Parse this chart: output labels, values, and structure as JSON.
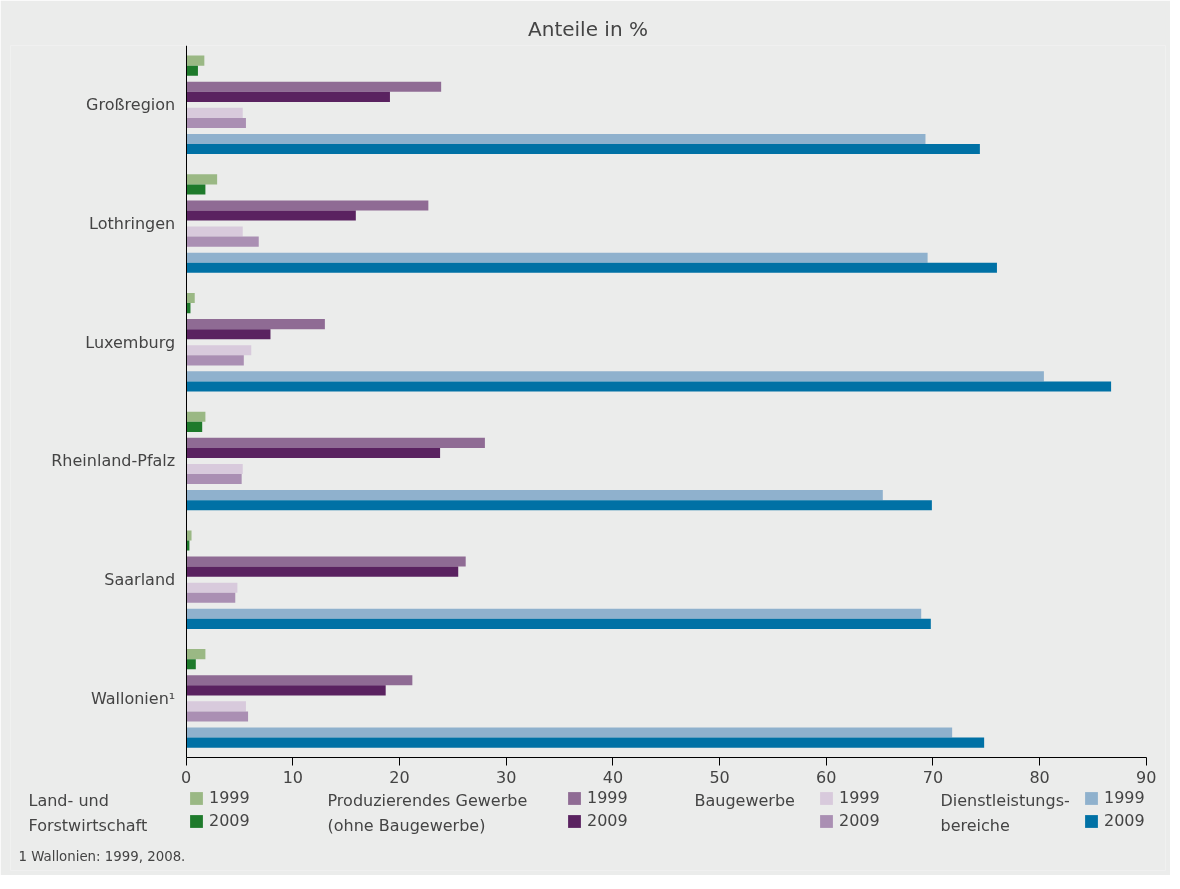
{
  "chart_data": {
    "type": "bar",
    "orientation": "horizontal",
    "title": "Anteile in %",
    "categories": [
      "Großregion",
      "Lothringen",
      "Luxemburg",
      "Rheinland-Pfalz",
      "Saarland",
      "Wallonien¹"
    ],
    "series": [
      {
        "name": "1999",
        "color": "#9ab884",
        "values": [
          1.7,
          2.9,
          0.8,
          1.8,
          0.5,
          1.8
        ]
      },
      {
        "name": "2009",
        "color": "#1e7a2b",
        "values": [
          1.1,
          1.8,
          0.4,
          1.5,
          0.3,
          0.9
        ]
      },
      {
        "name": "1999",
        "color": "#8f6b94",
        "values": [
          23.9,
          22.7,
          13.0,
          28.0,
          26.2,
          21.2
        ]
      },
      {
        "name": "2009",
        "color": "#5a2260",
        "values": [
          19.1,
          15.9,
          7.9,
          23.8,
          25.5,
          18.7
        ]
      },
      {
        "name": "1999",
        "color": "#d8cadc",
        "values": [
          5.3,
          5.3,
          6.1,
          5.3,
          4.8,
          5.6
        ]
      },
      {
        "name": "2009",
        "color": "#aa8fb3",
        "values": [
          5.6,
          6.8,
          5.4,
          5.2,
          4.6,
          5.8
        ]
      },
      {
        "name": "1999",
        "color": "#8fb1cd",
        "values": [
          69.3,
          69.5,
          80.4,
          65.3,
          68.9,
          71.8
        ]
      },
      {
        "name": "2009",
        "color": "#0071a5",
        "values": [
          74.4,
          76.0,
          86.7,
          69.9,
          69.8,
          74.8
        ]
      }
    ],
    "xlim": [
      0,
      90
    ],
    "xticks": [
      0,
      10,
      20,
      30,
      40,
      50,
      60,
      70,
      80,
      90
    ],
    "grid": false,
    "legend": "bottom",
    "annotations": [
      "Land- und\nForstwirtschaft",
      "Produzierendes Gewerbe\n(ohne Baugewerbe)",
      "Baugewerbe",
      "Dienstleistungs-\nbereiche",
      "1 Wallonien: 1999, 2008."
    ]
  }
}
